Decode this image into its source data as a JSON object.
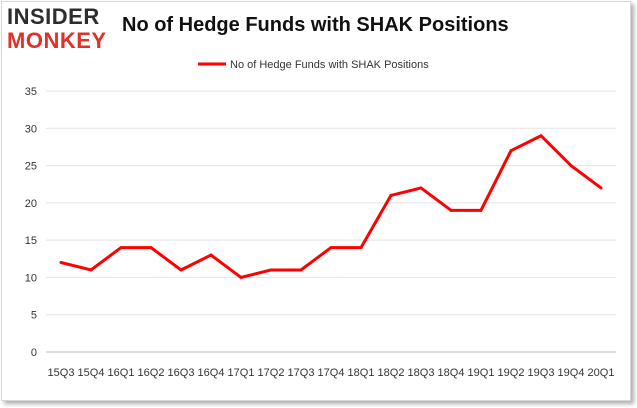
{
  "logo": {
    "line1": "INSIDER",
    "line2": "MONKEY"
  },
  "chart_data": {
    "type": "line",
    "title": "No of Hedge Funds with SHAK Positions",
    "xlabel": "",
    "ylabel": "",
    "categories": [
      "2015Q3",
      "2015Q4",
      "2016Q1",
      "2016Q2",
      "2016Q3",
      "2016Q4",
      "2017Q1",
      "2017Q2",
      "2017Q3",
      "2017Q4",
      "2018Q1",
      "2018Q2",
      "2018Q3",
      "2018Q4",
      "2019Q1",
      "2019Q2",
      "2019Q3",
      "2019Q4",
      "2020Q1"
    ],
    "x_tick_labels": [
      "15Q3",
      "15Q4",
      "16Q1",
      "16Q2",
      "16Q3",
      "16Q4",
      "17Q1",
      "17Q2",
      "17Q3",
      "17Q4",
      "18Q1",
      "18Q2",
      "18Q3",
      "18Q4",
      "19Q1",
      "19Q2",
      "19Q3",
      "19Q4",
      "20Q1"
    ],
    "series": [
      {
        "name": "No of Hedge Funds with SHAK Positions",
        "color": "#ff0000",
        "values": [
          12,
          11,
          14,
          14,
          11,
          13,
          10,
          11,
          11,
          14,
          14,
          21,
          22,
          19,
          19,
          27,
          29,
          25,
          22
        ]
      }
    ],
    "ylim": [
      0,
      35
    ],
    "yticks": [
      "0",
      "5",
      "10",
      "15",
      "20",
      "25",
      "30",
      "35"
    ],
    "grid": true,
    "legend": "top-center"
  }
}
